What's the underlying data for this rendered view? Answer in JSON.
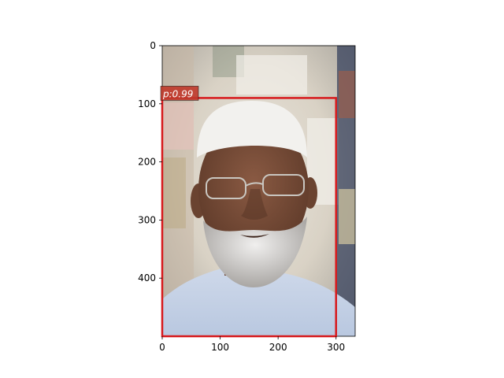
{
  "figure": {
    "image_description_icon": "photo-portrait",
    "image_size": {
      "width": 333,
      "height": 500
    }
  },
  "axes": {
    "x_ticks": [
      0,
      100,
      200,
      300
    ],
    "y_ticks": [
      0,
      100,
      200,
      300,
      400
    ],
    "x_labels": [
      "0",
      "100",
      "200",
      "300"
    ],
    "y_labels": [
      "0",
      "100",
      "200",
      "300",
      "400"
    ]
  },
  "detections": [
    {
      "label": "p:0.99",
      "box": {
        "x0": 0,
        "y0": 90,
        "x1": 300,
        "y1": 500
      },
      "edge_color": "#d7191c",
      "label_bg": "#c0392b"
    }
  ]
}
